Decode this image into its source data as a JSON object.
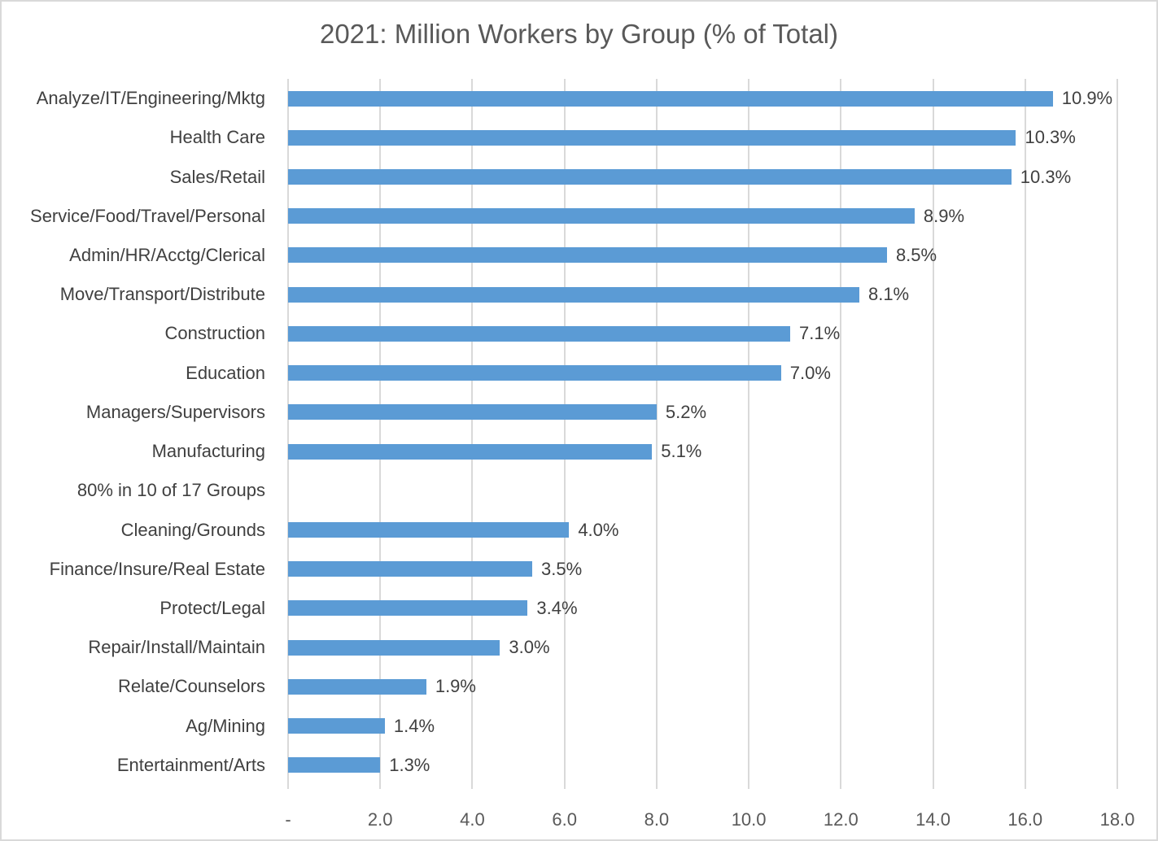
{
  "chart_data": {
    "type": "bar",
    "orientation": "horizontal",
    "title": "2021: Million Workers by Group (% of Total)",
    "categories": [
      "Analyze/IT/Engineering/Mktg",
      "Health Care",
      "Sales/Retail",
      "Service/Food/Travel/Personal",
      "Admin/HR/Acctg/Clerical",
      "Move/Transport/Distribute",
      "Construction",
      "Education",
      "Managers/Supervisors",
      "Manufacturing",
      "80% in 10 of 17 Groups",
      "Cleaning/Grounds",
      "Finance/Insure/Real Estate",
      "Protect/Legal",
      "Repair/Install/Maintain",
      "Relate/Counselors",
      "Ag/Mining",
      "Entertainment/Arts"
    ],
    "values": [
      16.6,
      15.8,
      15.7,
      13.6,
      13.0,
      12.4,
      10.9,
      10.7,
      8.0,
      7.9,
      null,
      6.1,
      5.3,
      5.2,
      4.6,
      3.0,
      2.1,
      2.0
    ],
    "data_labels": [
      "10.9%",
      "10.3%",
      "10.3%",
      "8.9%",
      "8.5%",
      "8.1%",
      "7.1%",
      "7.0%",
      "5.2%",
      "5.1%",
      "",
      "4.0%",
      "3.5%",
      "3.4%",
      "3.0%",
      "1.9%",
      "1.4%",
      "1.3%"
    ],
    "x_ticks": [
      "-",
      "2.0",
      "4.0",
      "6.0",
      "8.0",
      "10.0",
      "12.0",
      "14.0",
      "16.0",
      "18.0"
    ],
    "x_tick_values": [
      0,
      2,
      4,
      6,
      8,
      10,
      12,
      14,
      16,
      18
    ],
    "xlim": [
      0,
      18
    ],
    "grid": true,
    "legend": "none",
    "bar_color": "#5b9bd5",
    "gridline_color": "#d9d9d9",
    "title_color": "#595959",
    "label_color": "#404040",
    "axis_text_color": "#595959",
    "units": "million workers"
  }
}
